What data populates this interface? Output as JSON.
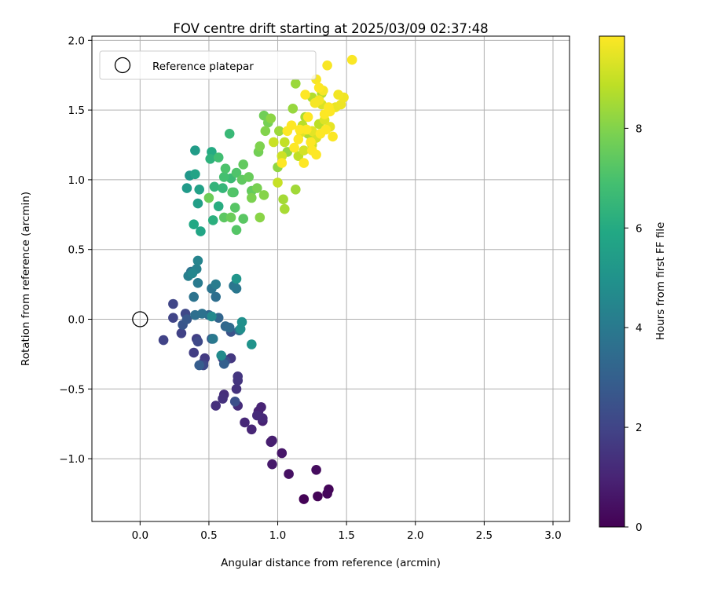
{
  "chart_data": {
    "type": "scatter",
    "title": "FOV centre drift starting at 2025/03/09 02:37:48",
    "xlabel": "Angular distance from reference (arcmin)",
    "ylabel": "Rotation from reference (arcmin)",
    "xlim": [
      -0.35,
      3.12
    ],
    "ylim": [
      -1.45,
      2.03
    ],
    "xticks": [
      0.0,
      0.5,
      1.0,
      1.5,
      2.0,
      2.5,
      3.0
    ],
    "xtick_labels": [
      "0.0",
      "0.5",
      "1.0",
      "1.5",
      "2.0",
      "2.5",
      "3.0"
    ],
    "yticks": [
      -1.0,
      -0.5,
      0.0,
      0.5,
      1.0,
      1.5,
      2.0
    ],
    "ytick_labels": [
      "−1.0",
      "−0.5",
      "0.0",
      "0.5",
      "1.0",
      "1.5",
      "2.0"
    ],
    "grid": true,
    "legend": {
      "placement": "top-left",
      "entries": [
        "Reference platepar"
      ]
    },
    "reference_point": {
      "x": 0.0,
      "y": 0.0,
      "label": "Reference platepar"
    },
    "colorbar": {
      "label": "Hours from first FF file",
      "range": [
        0,
        9.85
      ],
      "ticks": [
        0,
        2,
        4,
        6,
        8
      ],
      "tick_labels": [
        "0",
        "2",
        "4",
        "6",
        "8"
      ],
      "colormap": "viridis"
    },
    "points": [
      [
        1.19,
        -1.29,
        0.05
      ],
      [
        1.29,
        -1.27,
        0.1
      ],
      [
        1.37,
        -1.22,
        0.15
      ],
      [
        1.36,
        -1.25,
        0.2
      ],
      [
        1.28,
        -1.08,
        0.3
      ],
      [
        1.08,
        -1.11,
        0.45
      ],
      [
        1.03,
        -0.96,
        0.6
      ],
      [
        0.96,
        -1.04,
        0.7
      ],
      [
        0.96,
        -0.87,
        0.8
      ],
      [
        0.95,
        -0.88,
        0.85
      ],
      [
        0.89,
        -0.73,
        0.9
      ],
      [
        0.86,
        -0.66,
        0.95
      ],
      [
        0.88,
        -0.63,
        1.0
      ],
      [
        0.81,
        -0.79,
        1.05
      ],
      [
        0.76,
        -0.74,
        1.1
      ],
      [
        0.89,
        -0.71,
        1.15
      ],
      [
        0.85,
        -0.69,
        1.2
      ],
      [
        0.71,
        -0.62,
        1.25
      ],
      [
        0.61,
        -0.54,
        1.3
      ],
      [
        0.55,
        -0.62,
        1.35
      ],
      [
        0.6,
        -0.57,
        1.4
      ],
      [
        0.7,
        -0.5,
        1.45
      ],
      [
        0.71,
        -0.44,
        1.5
      ],
      [
        0.71,
        -0.41,
        1.55
      ],
      [
        0.66,
        -0.28,
        1.6
      ],
      [
        0.6,
        -0.28,
        1.65
      ],
      [
        0.47,
        -0.28,
        1.7
      ],
      [
        0.46,
        -0.31,
        1.75
      ],
      [
        0.39,
        -0.24,
        1.8
      ],
      [
        0.41,
        -0.14,
        1.85
      ],
      [
        0.3,
        -0.1,
        1.9
      ],
      [
        0.17,
        -0.15,
        1.95
      ],
      [
        0.24,
        0.01,
        2.0
      ],
      [
        0.24,
        0.11,
        2.05
      ],
      [
        0.33,
        0.04,
        2.1
      ],
      [
        0.42,
        -0.16,
        2.15
      ],
      [
        0.46,
        -0.33,
        2.2
      ],
      [
        0.62,
        -0.3,
        2.3
      ],
      [
        0.69,
        -0.59,
        2.4
      ],
      [
        0.66,
        -0.09,
        2.5
      ],
      [
        0.31,
        -0.04,
        2.6
      ],
      [
        0.34,
        0.0,
        2.7
      ],
      [
        0.52,
        -0.14,
        2.8
      ],
      [
        0.43,
        -0.33,
        2.9
      ],
      [
        0.61,
        -0.32,
        3.0
      ],
      [
        0.5,
        0.03,
        3.1
      ],
      [
        0.57,
        0.01,
        3.2
      ],
      [
        0.62,
        -0.05,
        3.3
      ],
      [
        0.65,
        -0.06,
        3.4
      ],
      [
        0.72,
        -0.08,
        3.5
      ],
      [
        0.55,
        0.16,
        3.55
      ],
      [
        0.4,
        0.03,
        3.6
      ],
      [
        0.45,
        0.04,
        3.65
      ],
      [
        0.37,
        0.34,
        3.7
      ],
      [
        0.39,
        0.16,
        3.75
      ],
      [
        0.52,
        0.22,
        3.8
      ],
      [
        0.68,
        0.24,
        3.85
      ],
      [
        0.7,
        0.22,
        3.9
      ],
      [
        0.53,
        -0.14,
        3.95
      ],
      [
        0.42,
        0.26,
        4.0
      ],
      [
        0.55,
        0.25,
        4.1
      ],
      [
        0.35,
        0.31,
        4.2
      ],
      [
        0.41,
        0.36,
        4.3
      ],
      [
        0.42,
        0.42,
        4.4
      ],
      [
        0.38,
        0.33,
        4.5
      ],
      [
        0.52,
        0.02,
        4.6
      ],
      [
        0.59,
        -0.26,
        4.7
      ],
      [
        0.73,
        -0.07,
        4.8
      ],
      [
        0.74,
        -0.02,
        4.9
      ],
      [
        0.81,
        -0.18,
        5.0
      ],
      [
        0.7,
        0.29,
        5.1
      ],
      [
        0.36,
        1.03,
        5.2
      ],
      [
        0.34,
        0.94,
        5.3
      ],
      [
        0.4,
        1.21,
        5.4
      ],
      [
        0.42,
        0.83,
        5.5
      ],
      [
        0.43,
        0.93,
        5.6
      ],
      [
        0.4,
        1.04,
        5.7
      ],
      [
        0.44,
        0.63,
        5.8
      ],
      [
        0.39,
        0.68,
        5.9
      ],
      [
        0.52,
        1.2,
        6.0
      ],
      [
        0.57,
        0.81,
        6.1
      ],
      [
        0.53,
        0.71,
        6.2
      ],
      [
        0.51,
        1.15,
        6.3
      ],
      [
        0.54,
        0.95,
        6.4
      ],
      [
        0.6,
        0.94,
        6.5
      ],
      [
        0.65,
        1.33,
        6.6
      ],
      [
        0.66,
        1.01,
        6.7
      ],
      [
        0.57,
        1.16,
        6.8
      ],
      [
        0.61,
        1.02,
        6.9
      ],
      [
        0.68,
        0.91,
        7.0
      ],
      [
        0.62,
        1.08,
        7.05
      ],
      [
        0.7,
        1.05,
        7.1
      ],
      [
        0.67,
        0.91,
        7.15
      ],
      [
        0.7,
        0.64,
        7.2
      ],
      [
        0.69,
        0.8,
        7.25
      ],
      [
        0.75,
        0.72,
        7.3
      ],
      [
        0.61,
        0.73,
        7.35
      ],
      [
        0.74,
        1.0,
        7.4
      ],
      [
        0.75,
        1.11,
        7.45
      ],
      [
        0.81,
        0.92,
        7.5
      ],
      [
        0.79,
        1.02,
        7.55
      ],
      [
        0.66,
        0.73,
        7.6
      ],
      [
        0.5,
        0.87,
        7.65
      ],
      [
        0.9,
        1.46,
        7.7
      ],
      [
        0.86,
        1.2,
        7.75
      ],
      [
        0.93,
        1.41,
        7.8
      ],
      [
        0.85,
        0.94,
        7.85
      ],
      [
        0.81,
        0.87,
        7.9
      ],
      [
        0.87,
        1.24,
        7.95
      ],
      [
        0.91,
        1.35,
        8.0
      ],
      [
        0.9,
        0.89,
        8.05
      ],
      [
        0.87,
        0.73,
        8.1
      ],
      [
        0.95,
        1.44,
        8.15
      ],
      [
        1.0,
        1.09,
        8.2
      ],
      [
        1.07,
        1.2,
        8.25
      ],
      [
        1.11,
        1.51,
        8.3
      ],
      [
        1.13,
        1.69,
        8.35
      ],
      [
        1.01,
        1.35,
        8.4
      ],
      [
        1.13,
        0.93,
        8.45
      ],
      [
        1.04,
        0.86,
        8.5
      ],
      [
        1.05,
        0.79,
        8.55
      ],
      [
        1.2,
        1.45,
        8.6
      ],
      [
        1.22,
        1.33,
        8.65
      ],
      [
        1.25,
        1.59,
        8.7
      ],
      [
        1.32,
        1.62,
        8.75
      ],
      [
        1.18,
        1.39,
        8.8
      ],
      [
        1.3,
        1.4,
        8.85
      ],
      [
        1.15,
        1.17,
        8.9
      ],
      [
        1.05,
        1.27,
        8.95
      ],
      [
        1.0,
        0.98,
        9.0
      ],
      [
        0.97,
        1.27,
        9.05
      ],
      [
        1.03,
        1.17,
        9.1
      ],
      [
        1.25,
        1.25,
        9.15
      ],
      [
        1.19,
        1.21,
        9.2
      ],
      [
        1.28,
        1.3,
        9.25
      ],
      [
        1.32,
        1.54,
        9.3
      ],
      [
        1.34,
        1.43,
        9.35
      ],
      [
        1.17,
        1.34,
        9.4
      ],
      [
        1.25,
        1.35,
        9.45
      ],
      [
        1.38,
        1.38,
        9.5
      ],
      [
        1.42,
        1.52,
        9.55
      ],
      [
        1.46,
        1.54,
        9.6
      ],
      [
        1.48,
        1.59,
        9.65
      ],
      [
        1.44,
        1.61,
        9.68
      ],
      [
        1.3,
        1.57,
        9.7
      ],
      [
        1.27,
        1.55,
        9.72
      ],
      [
        1.33,
        1.64,
        9.74
      ],
      [
        1.28,
        1.72,
        9.76
      ],
      [
        1.36,
        1.82,
        9.78
      ],
      [
        1.54,
        1.86,
        9.8
      ],
      [
        1.4,
        1.31,
        9.82
      ],
      [
        1.34,
        1.47,
        9.83
      ],
      [
        1.21,
        1.36,
        9.84
      ],
      [
        1.03,
        1.12,
        9.85
      ],
      [
        1.07,
        1.35,
        9.85
      ],
      [
        1.1,
        1.39,
        9.85
      ],
      [
        1.15,
        1.29,
        9.85
      ],
      [
        1.19,
        1.12,
        9.85
      ],
      [
        1.25,
        1.21,
        9.85
      ],
      [
        1.28,
        1.18,
        9.85
      ],
      [
        1.31,
        1.33,
        9.85
      ],
      [
        1.35,
        1.36,
        9.85
      ],
      [
        1.38,
        1.49,
        9.85
      ],
      [
        1.24,
        1.27,
        9.85
      ],
      [
        1.22,
        1.45,
        9.85
      ],
      [
        1.12,
        1.23,
        9.85
      ],
      [
        1.16,
        1.36,
        9.85
      ],
      [
        1.2,
        1.61,
        9.85
      ],
      [
        1.3,
        1.66,
        9.85
      ],
      [
        1.37,
        1.52,
        9.85
      ]
    ]
  }
}
